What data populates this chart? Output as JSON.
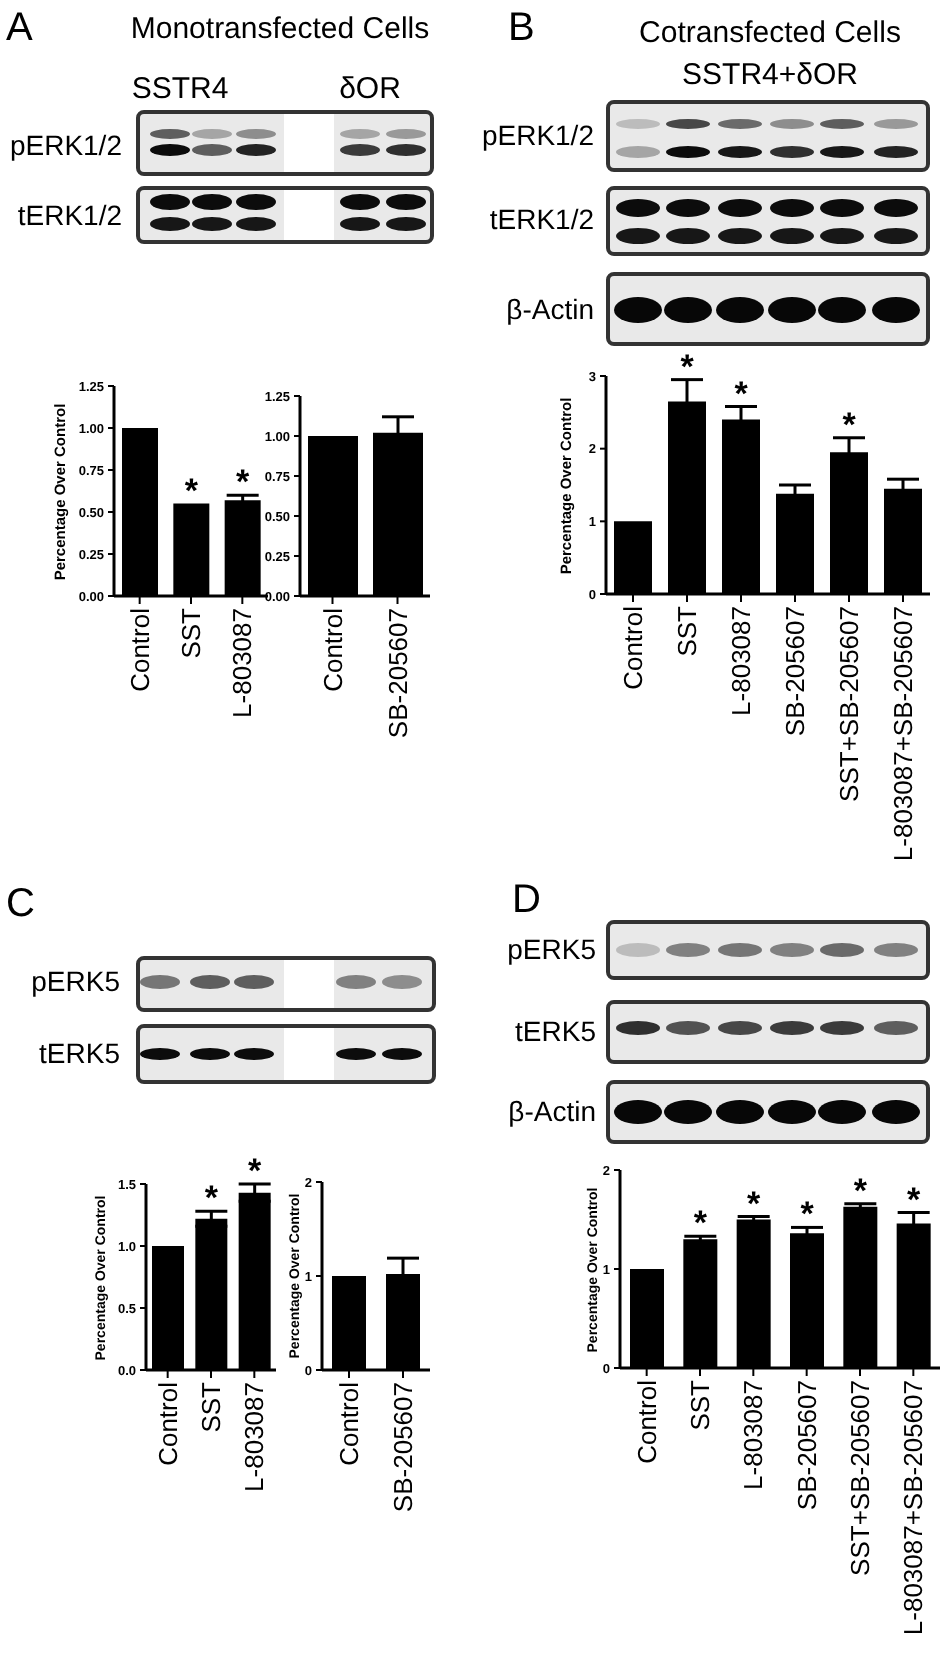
{
  "chart_data": [
    {
      "type": "bar",
      "title": "Monotransfected Cells",
      "ylabel": "Percentage Over Control",
      "categories": [
        "Control",
        "SST",
        "L-803087"
      ],
      "values": [
        1.0,
        0.55,
        0.57
      ],
      "errors": [
        null,
        null,
        0.03
      ],
      "color": "#000000",
      "ylim": [
        0,
        1.25
      ],
      "yticks": [
        {
          "value": 0,
          "label": "0.00"
        },
        {
          "value": 0.25,
          "label": "0.25"
        },
        {
          "value": 0.5,
          "label": "0.50"
        },
        {
          "value": 0.75,
          "label": "0.75"
        },
        {
          "value": 1,
          "label": "1.00"
        },
        {
          "value": 1.25,
          "label": "1.25"
        }
      ],
      "annotations": [
        "A",
        "SSTR4",
        "δOR",
        "pERK1/2",
        "tERK1/2",
        {
          "text": "*",
          "x": "SST",
          "y": 0.55
        },
        {
          "text": "*",
          "x": "L-803087",
          "y": 0.6
        }
      ]
    },
    {
      "type": "bar",
      "categories": [
        "Control",
        "SB-205607"
      ],
      "values": [
        1.0,
        1.02
      ],
      "errors": [
        null,
        0.1
      ],
      "color": "#000000",
      "ylim": [
        0,
        1.25
      ],
      "yticks": [
        {
          "value": 0,
          "label": "0.00"
        },
        {
          "value": 0.25,
          "label": "0.25"
        },
        {
          "value": 0.5,
          "label": "0.50"
        },
        {
          "value": 0.75,
          "label": "0.75"
        },
        {
          "value": 1,
          "label": "1.00"
        },
        {
          "value": 1.25,
          "label": "1.25"
        }
      ]
    },
    {
      "type": "bar",
      "title": "Cotransfected Cells",
      "subtitle": "SSTR4+δOR",
      "ylabel": "Percentage Over Control",
      "categories": [
        "Control",
        "SST",
        "L-803087",
        "SB-205607",
        "SST+SB-205607",
        "L-803087+SB-205607"
      ],
      "values": [
        1.0,
        2.65,
        2.4,
        1.38,
        1.95,
        1.45
      ],
      "errors": [
        null,
        0.3,
        0.18,
        0.12,
        0.2,
        0.13
      ],
      "color": "#000000",
      "ylim": [
        0,
        3
      ],
      "yticks": [
        0,
        1,
        2,
        3
      ],
      "annotations": [
        "B",
        "pERK1/2",
        "tERK1/2",
        "β-Actin",
        {
          "text": "*",
          "x": "SST",
          "y": 2.95
        },
        {
          "text": "*",
          "x": "L-803087",
          "y": 2.58
        },
        {
          "text": "*",
          "x": "SST+SB-205607",
          "y": 2.15
        }
      ]
    },
    {
      "type": "bar",
      "ylabel": "Percentage Over Control",
      "categories": [
        "Control",
        "SST",
        "L-803087"
      ],
      "values": [
        1.0,
        1.22,
        1.43
      ],
      "errors": [
        null,
        0.06,
        0.07
      ],
      "color": "#000000",
      "ylim": [
        0,
        1.5
      ],
      "yticks": [
        {
          "value": 0,
          "label": "0.0"
        },
        {
          "value": 0.5,
          "label": "0.5"
        },
        {
          "value": 1,
          "label": "1.0"
        },
        {
          "value": 1.5,
          "label": "1.5"
        }
      ],
      "annotations": [
        "C",
        "pERK5",
        "tERK5",
        {
          "text": "*",
          "x": "SST",
          "y": 1.28
        },
        {
          "text": "*",
          "x": "L-803087",
          "y": 1.5
        }
      ]
    },
    {
      "type": "bar",
      "ylabel": "Percentage Over Control",
      "categories": [
        "Control",
        "SB-205607"
      ],
      "values": [
        1.0,
        1.02
      ],
      "errors": [
        null,
        0.17
      ],
      "color": "#000000",
      "ylim": [
        0,
        2
      ],
      "yticks": [
        0,
        1,
        2
      ]
    },
    {
      "type": "bar",
      "ylabel": "Percentage Over Control",
      "categories": [
        "Control",
        "SST",
        "L-803087",
        "SB-205607",
        "SST+SB-205607",
        "L-803087+SB-205607"
      ],
      "values": [
        1.0,
        1.3,
        1.5,
        1.36,
        1.63,
        1.46
      ],
      "errors": [
        null,
        0.03,
        0.03,
        0.06,
        0.03,
        0.11
      ],
      "color": "#000000",
      "ylim": [
        0,
        2
      ],
      "yticks": [
        0,
        1,
        2
      ],
      "annotations": [
        "D",
        "pERK5",
        "tERK5",
        "β-Actin",
        {
          "text": "*",
          "x": "SST",
          "y": 1.33
        },
        {
          "text": "*",
          "x": "L-803087",
          "y": 1.53
        },
        {
          "text": "*",
          "x": "SB-205607",
          "y": 1.42
        },
        {
          "text": "*",
          "x": "SST+SB-205607",
          "y": 1.66
        },
        {
          "text": "*",
          "x": "L-803087+SB-205607",
          "y": 1.57
        }
      ]
    }
  ]
}
